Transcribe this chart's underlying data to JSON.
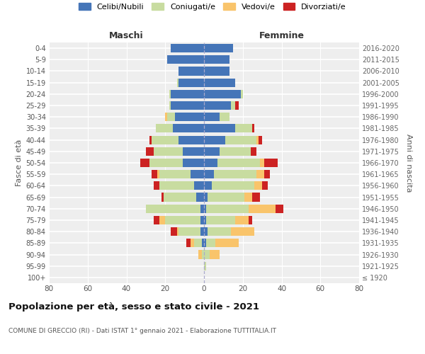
{
  "age_groups": [
    "100+",
    "95-99",
    "90-94",
    "85-89",
    "80-84",
    "75-79",
    "70-74",
    "65-69",
    "60-64",
    "55-59",
    "50-54",
    "45-49",
    "40-44",
    "35-39",
    "30-34",
    "25-29",
    "20-24",
    "15-19",
    "10-14",
    "5-9",
    "0-4"
  ],
  "birth_years": [
    "≤ 1920",
    "1921-1925",
    "1926-1930",
    "1931-1935",
    "1936-1940",
    "1941-1945",
    "1946-1950",
    "1951-1955",
    "1956-1960",
    "1961-1965",
    "1966-1970",
    "1971-1975",
    "1976-1980",
    "1981-1985",
    "1986-1990",
    "1991-1995",
    "1996-2000",
    "2001-2005",
    "2006-2010",
    "2011-2015",
    "2016-2020"
  ],
  "maschi": {
    "celibi": [
      0,
      0,
      0,
      1,
      2,
      2,
      2,
      4,
      5,
      7,
      11,
      11,
      13,
      16,
      15,
      17,
      17,
      13,
      13,
      19,
      17
    ],
    "coniugati": [
      0,
      0,
      1,
      4,
      11,
      18,
      28,
      17,
      18,
      16,
      17,
      15,
      14,
      9,
      4,
      1,
      1,
      1,
      0,
      0,
      0
    ],
    "vedovi": [
      0,
      0,
      2,
      2,
      1,
      3,
      0,
      0,
      0,
      1,
      0,
      0,
      0,
      0,
      1,
      0,
      0,
      0,
      0,
      0,
      0
    ],
    "divorziati": [
      0,
      0,
      0,
      2,
      3,
      3,
      0,
      1,
      3,
      3,
      5,
      4,
      1,
      0,
      0,
      0,
      0,
      0,
      0,
      0,
      0
    ]
  },
  "femmine": {
    "celibi": [
      0,
      0,
      0,
      1,
      2,
      1,
      1,
      2,
      4,
      5,
      7,
      8,
      11,
      16,
      8,
      14,
      19,
      16,
      13,
      13,
      15
    ],
    "coniugati": [
      0,
      1,
      3,
      5,
      12,
      15,
      22,
      19,
      22,
      22,
      22,
      16,
      16,
      9,
      5,
      2,
      1,
      0,
      0,
      0,
      0
    ],
    "vedovi": [
      0,
      0,
      5,
      12,
      12,
      7,
      14,
      4,
      4,
      4,
      2,
      0,
      1,
      0,
      0,
      0,
      0,
      0,
      0,
      0,
      0
    ],
    "divorziati": [
      0,
      0,
      0,
      0,
      0,
      2,
      4,
      4,
      3,
      3,
      7,
      3,
      2,
      1,
      0,
      2,
      0,
      0,
      0,
      0,
      0
    ]
  },
  "colors": {
    "celibi": "#4575b8",
    "coniugati": "#c8dca0",
    "vedovi": "#f9c46b",
    "divorziati": "#cc2222"
  },
  "xlim": 80,
  "title": "Popolazione per età, sesso e stato civile - 2021",
  "subtitle": "COMUNE DI GRECCIO (RI) - Dati ISTAT 1° gennaio 2021 - Elaborazione TUTTITALIA.IT",
  "ylabel_left": "Fasce di età",
  "ylabel_right": "Anni di nascita",
  "header_maschi": "Maschi",
  "header_femmine": "Femmine",
  "legend_labels": [
    "Celibi/Nubili",
    "Coniugati/e",
    "Vedovi/e",
    "Divorziati/e"
  ],
  "bg_color": "#eeeeee"
}
